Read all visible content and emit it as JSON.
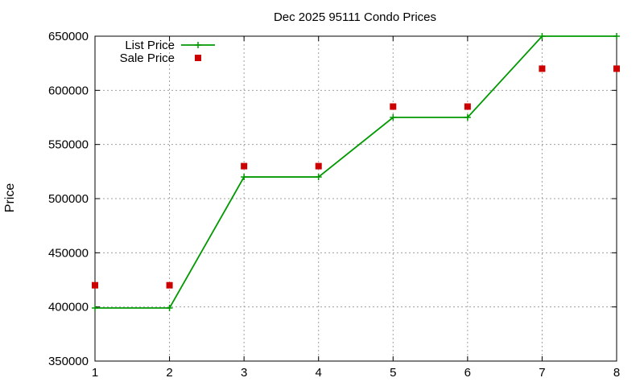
{
  "chart_data": {
    "type": "line",
    "title": "Dec 2025 95111 Condo Prices",
    "xlabel": "",
    "ylabel": "Price",
    "x": [
      1,
      2,
      3,
      4,
      5,
      6,
      7,
      8
    ],
    "xlim": [
      1,
      8
    ],
    "ylim": [
      350000,
      650000
    ],
    "xticks": [
      1,
      2,
      3,
      4,
      5,
      6,
      7,
      8
    ],
    "yticks": [
      350000,
      400000,
      450000,
      500000,
      550000,
      600000,
      650000
    ],
    "grid": true,
    "legend_position": "top-left",
    "series": [
      {
        "name": "List Price",
        "style": "linespoints",
        "color": "#009900",
        "values": [
          399000,
          399000,
          520000,
          520000,
          575000,
          575000,
          650000,
          650000
        ]
      },
      {
        "name": "Sale Price",
        "style": "points",
        "color": "#cc0000",
        "values": [
          420000,
          420000,
          530000,
          530000,
          585000,
          585000,
          620000,
          620000
        ]
      }
    ]
  }
}
